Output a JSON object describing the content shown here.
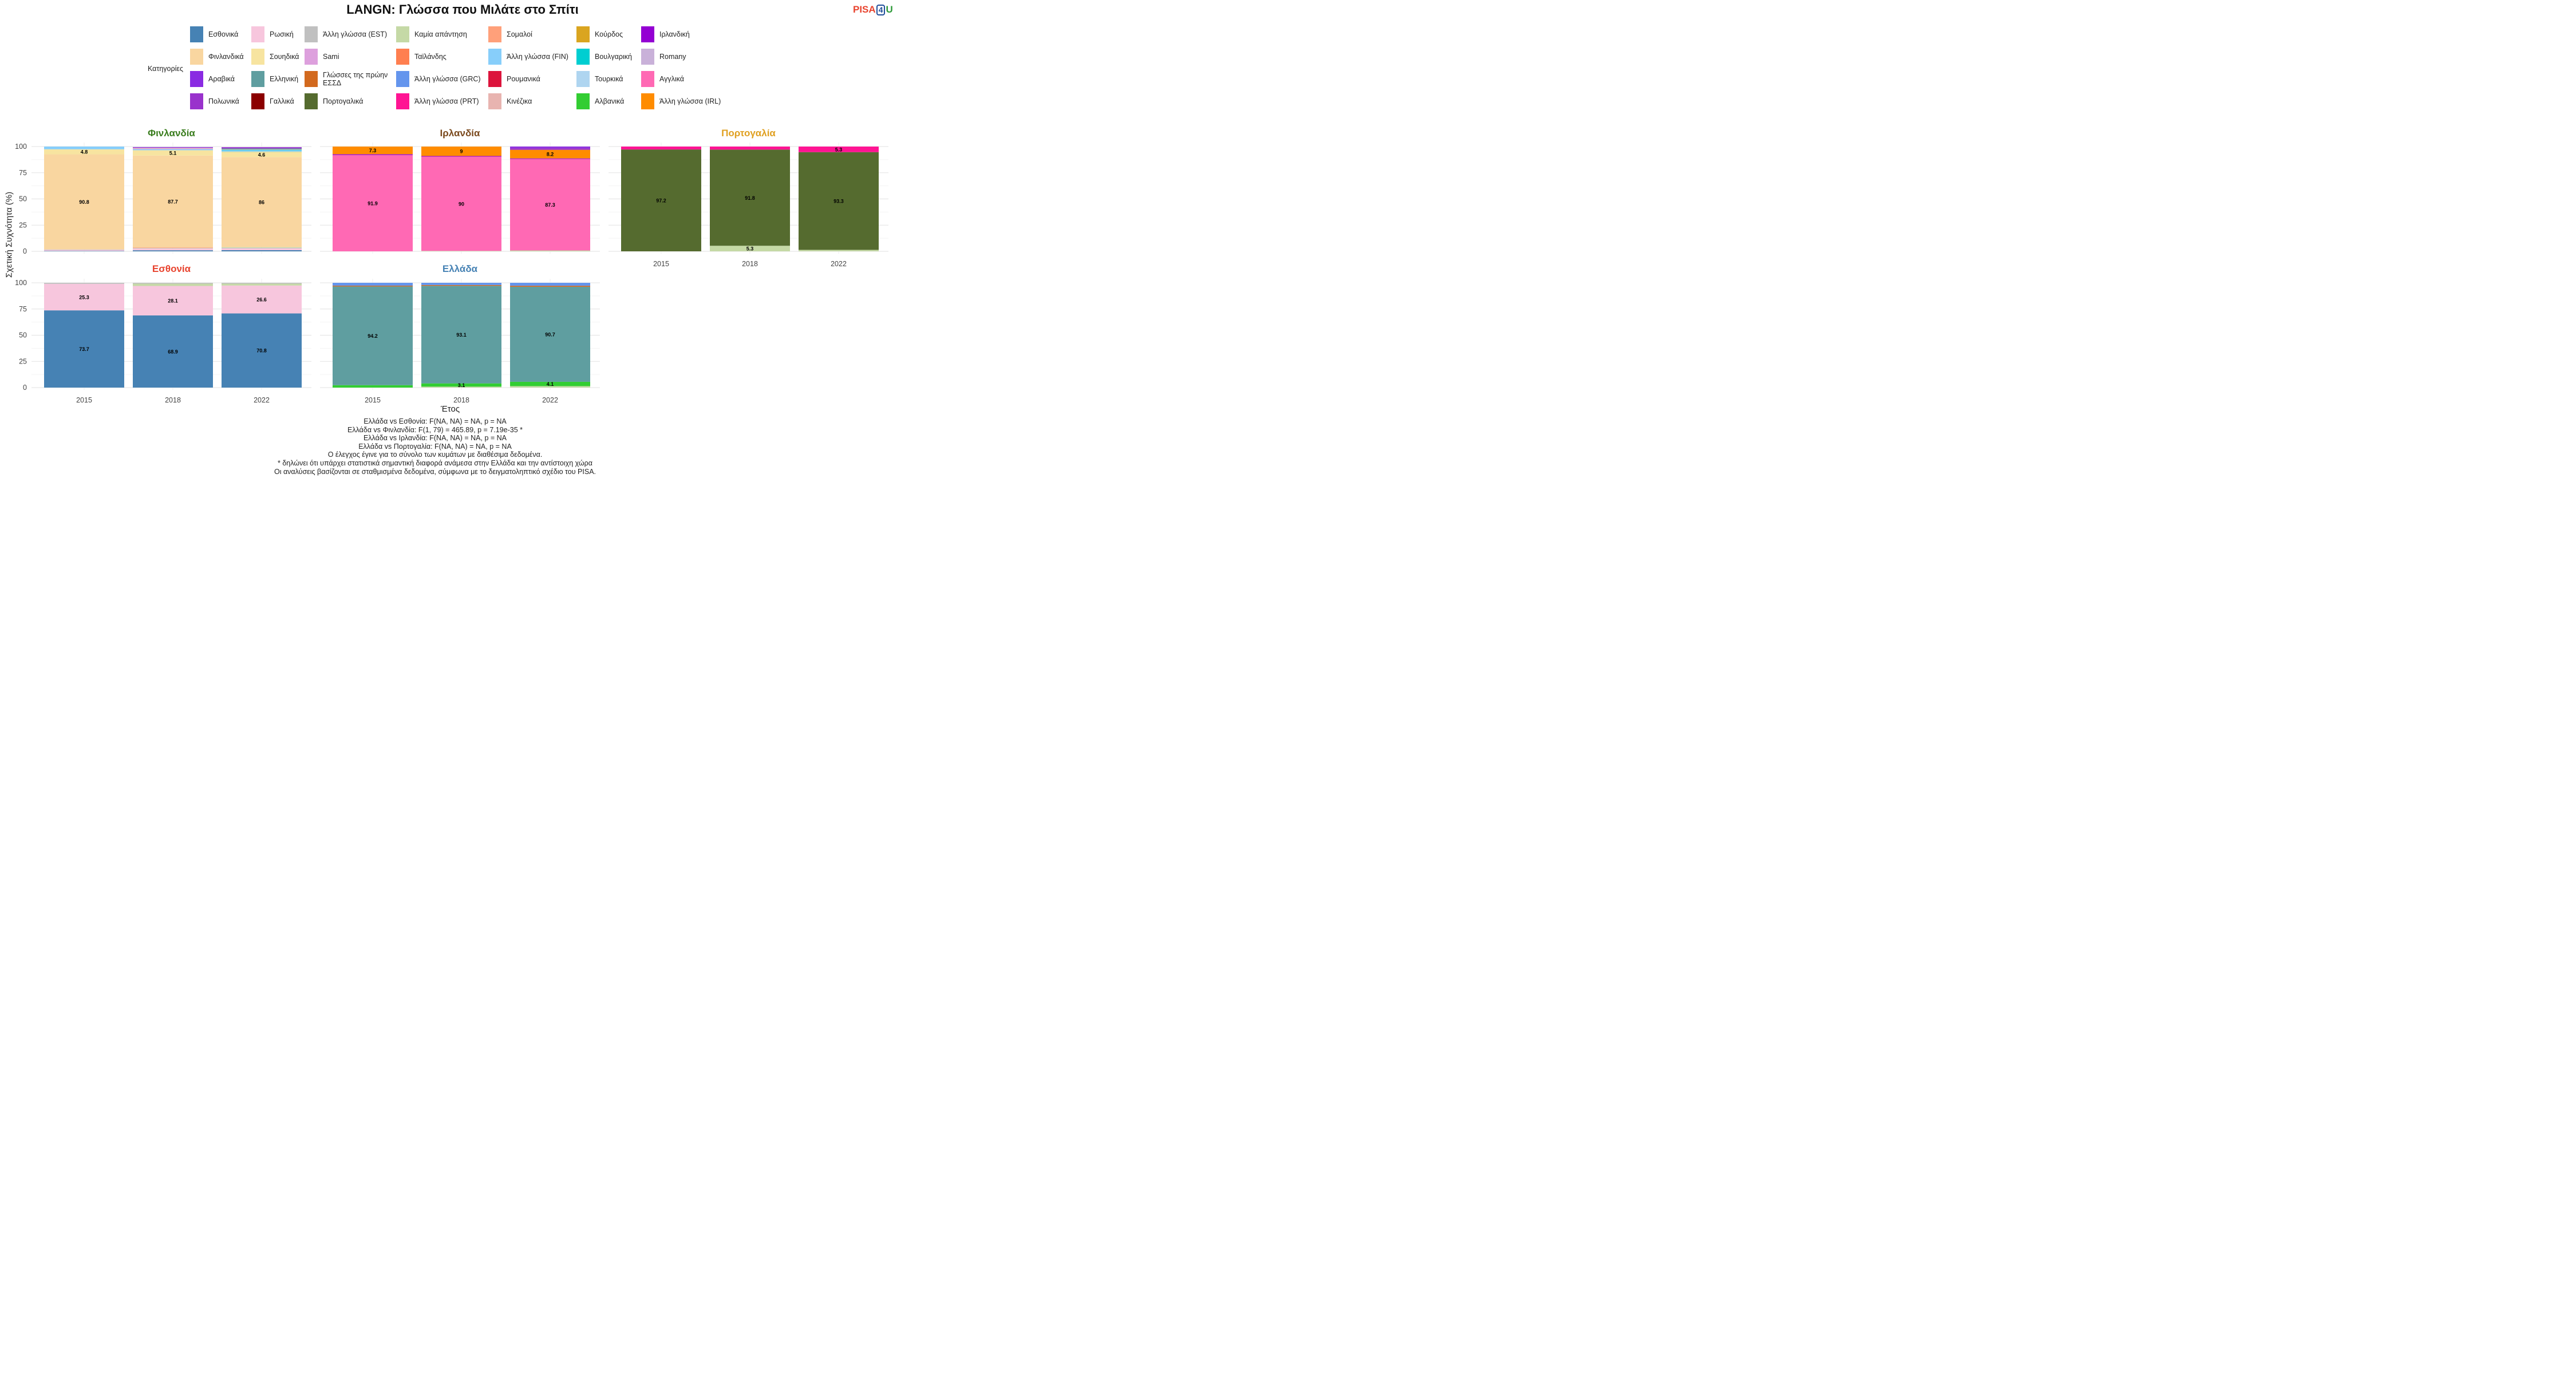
{
  "title": "LANGN: Γλώσσα που Μιλάτε στο Σπίτι",
  "logo": {
    "part1": "PISA",
    "part2": "4",
    "part3": "U",
    "colors": [
      "#e8432e",
      "#1f4e9a",
      "#2e9a3a"
    ]
  },
  "legend_title": "Κατηγορίες",
  "legend_items": [
    {
      "label": "Εσθονικά",
      "color": "#4682b4"
    },
    {
      "label": "Φινλανδικά",
      "color": "#f9d6a0"
    },
    {
      "label": "Αραβικά",
      "color": "#8a2be2"
    },
    {
      "label": "Πολωνικά",
      "color": "#9932cc"
    },
    {
      "label": "Ρωσική",
      "color": "#f7c6dd"
    },
    {
      "label": "Σουηδικά",
      "color": "#f7e4a0"
    },
    {
      "label": "Ελληνική",
      "color": "#5f9ea0"
    },
    {
      "label": "Γαλλικά",
      "color": "#8b0000"
    },
    {
      "label": "Άλλη γλώσσα (EST)",
      "color": "#c0c0c0"
    },
    {
      "label": "Sami",
      "color": "#dda0dd"
    },
    {
      "label": "Γλώσσες της πρώην ΕΣΣΔ",
      "color": "#d2691e"
    },
    {
      "label": "Πορτογαλικά",
      "color": "#556b2f"
    },
    {
      "label": "Καμία απάντηση",
      "color": "#c5d9a6"
    },
    {
      "label": "Ταϊλάνδης",
      "color": "#ff7f50"
    },
    {
      "label": "Άλλη γλώσσα (GRC)",
      "color": "#6495ed"
    },
    {
      "label": "Άλλη γλώσσα (PRT)",
      "color": "#ff1493"
    },
    {
      "label": "Σομαλοί",
      "color": "#ffa07a"
    },
    {
      "label": "Άλλη γλώσσα (FIN)",
      "color": "#87cefa"
    },
    {
      "label": "Ρουμανικά",
      "color": "#dc143c"
    },
    {
      "label": "Κινέζικα",
      "color": "#e8b4b0"
    },
    {
      "label": "Κούρδος",
      "color": "#daa520"
    },
    {
      "label": "Βουλγαρική",
      "color": "#00ced1"
    },
    {
      "label": "Τουρκικά",
      "color": "#afd5f0"
    },
    {
      "label": "Αλβανικά",
      "color": "#32cd32"
    },
    {
      "label": "Ιρλανδική",
      "color": "#9400d3"
    },
    {
      "label": "Romany",
      "color": "#c9b1d9"
    },
    {
      "label": "Αγγλικά",
      "color": "#ff69b4"
    },
    {
      "label": "Άλλη γλώσσα (IRL)",
      "color": "#ff8c00"
    }
  ],
  "axis": {
    "ylabel": "Σχετική Συχνότητα (%)",
    "xlabel": "Έτος"
  },
  "chart_data": {
    "type": "bar",
    "stacked": true,
    "ylim": [
      0,
      100
    ],
    "yticks": [
      0,
      25,
      50,
      75,
      100
    ],
    "categories": [
      "2015",
      "2018",
      "2022"
    ],
    "grid": true,
    "panels": [
      {
        "country": "Φινλανδία",
        "title_color": "#3a7d1e",
        "years": [
          {
            "year": "2015",
            "segments": [
              {
                "cat": "Εσθονικά",
                "value": 0.4
              },
              {
                "cat": "Ρωσική",
                "value": 1.0
              },
              {
                "cat": "Άλλη γλώσσα (EST)",
                "value": 0.4
              },
              {
                "cat": "Φινλανδικά",
                "value": 90.8,
                "label": "90.8"
              },
              {
                "cat": "Σουηδικά",
                "value": 4.8,
                "label": "4.8"
              },
              {
                "cat": "Άλλη γλώσσα (FIN)",
                "value": 2.6
              }
            ]
          },
          {
            "year": "2018",
            "segments": [
              {
                "cat": "Εσθονικά",
                "value": 1.0
              },
              {
                "cat": "Ρωσική",
                "value": 1.6
              },
              {
                "cat": "Άλλη γλώσσα (EST)",
                "value": 0.5
              },
              {
                "cat": "Σομαλοί",
                "value": 0.6
              },
              {
                "cat": "Φινλανδικά",
                "value": 87.7,
                "label": "87.7"
              },
              {
                "cat": "Σουηδικά",
                "value": 5.1,
                "label": "5.1"
              },
              {
                "cat": "Άλλη γλώσσα (FIN)",
                "value": 1.0
              },
              {
                "cat": "Sami",
                "value": 0.6
              },
              {
                "cat": "Κινέζικα",
                "value": 0.7
              },
              {
                "cat": "Αραβικά",
                "value": 0.7
              }
            ]
          },
          {
            "year": "2022",
            "segments": [
              {
                "cat": "Εσθονικά",
                "value": 1.1
              },
              {
                "cat": "Ρωσική",
                "value": 1.7
              },
              {
                "cat": "Άλλη γλώσσα (EST)",
                "value": 0.6
              },
              {
                "cat": "Καμία απάντηση",
                "value": 0.6
              },
              {
                "cat": "Φινλανδικά",
                "value": 86.0,
                "label": "86"
              },
              {
                "cat": "Σουηδικά",
                "value": 4.6,
                "label": "4.6"
              },
              {
                "cat": "Καμία απάντηση",
                "value": 0.7
              },
              {
                "cat": "Άλλη γλώσσα (FIN)",
                "value": 1.1
              },
              {
                "cat": "Βουλγαρική",
                "value": 0.5
              },
              {
                "cat": "Sami",
                "value": 0.6
              },
              {
                "cat": "Αλβανικά",
                "value": 0.5
              },
              {
                "cat": "Αραβικά",
                "value": 0.6
              },
              {
                "cat": "Πολωνικά",
                "value": 0.8
              }
            ]
          }
        ]
      },
      {
        "country": "Ιρλανδία",
        "title_color": "#7b4a1e",
        "years": [
          {
            "year": "2015",
            "segments": [
              {
                "cat": "Αγγλικά",
                "value": 91.9,
                "label": "91.9"
              },
              {
                "cat": "Ιρλανδική",
                "value": 0.8
              },
              {
                "cat": "Άλλη γλώσσα (IRL)",
                "value": 7.3,
                "label": "7.3"
              }
            ]
          },
          {
            "year": "2018",
            "segments": [
              {
                "cat": "Καμία απάντηση",
                "value": 0.4
              },
              {
                "cat": "Αγγλικά",
                "value": 90.0,
                "label": "90"
              },
              {
                "cat": "Ιρλανδική",
                "value": 0.6
              },
              {
                "cat": "Άλλη γλώσσα (IRL)",
                "value": 9.0,
                "label": "9"
              }
            ]
          },
          {
            "year": "2022",
            "segments": [
              {
                "cat": "Καμία απάντηση",
                "value": 0.8
              },
              {
                "cat": "Αγγλικά",
                "value": 87.3,
                "label": "87.3"
              },
              {
                "cat": "Ιρλανδική",
                "value": 0.6
              },
              {
                "cat": "Άλλη γλώσσα (IRL)",
                "value": 8.2,
                "label": "8.2"
              },
              {
                "cat": "Πολωνικά",
                "value": 1.9
              },
              {
                "cat": "Αραβικά",
                "value": 1.2
              }
            ]
          }
        ]
      },
      {
        "country": "Πορτογαλία",
        "title_color": "#e0a020",
        "years": [
          {
            "year": "2015",
            "segments": [
              {
                "cat": "Πορτογαλικά",
                "value": 97.2,
                "label": "97.2"
              },
              {
                "cat": "Άλλη γλώσσα (PRT)",
                "value": 2.8
              }
            ]
          },
          {
            "year": "2018",
            "segments": [
              {
                "cat": "Καμία απάντηση",
                "value": 5.3,
                "label": "5.3"
              },
              {
                "cat": "Πορτογαλικά",
                "value": 91.8,
                "label": "91.8"
              },
              {
                "cat": "Άλλη γλώσσα (PRT)",
                "value": 2.9
              }
            ]
          },
          {
            "year": "2022",
            "segments": [
              {
                "cat": "Καμία απάντηση",
                "value": 1.4
              },
              {
                "cat": "Πορτογαλικά",
                "value": 93.3,
                "label": "93.3"
              },
              {
                "cat": "Άλλη γλώσσα (PRT)",
                "value": 5.3,
                "label": "5.3"
              }
            ]
          }
        ]
      },
      {
        "country": "Εσθονία",
        "title_color": "#e8432e",
        "years": [
          {
            "year": "2015",
            "segments": [
              {
                "cat": "Εσθονικά",
                "value": 73.7,
                "label": "73.7"
              },
              {
                "cat": "Ρωσική",
                "value": 25.3,
                "label": "25.3"
              },
              {
                "cat": "Άλλη γλώσσα (EST)",
                "value": 1.0
              }
            ]
          },
          {
            "year": "2018",
            "segments": [
              {
                "cat": "Εσθονικά",
                "value": 68.9,
                "label": "68.9"
              },
              {
                "cat": "Ρωσική",
                "value": 28.1,
                "label": "28.1"
              },
              {
                "cat": "Καμία απάντηση",
                "value": 2.2
              },
              {
                "cat": "Άλλη γλώσσα (EST)",
                "value": 0.8
              }
            ]
          },
          {
            "year": "2022",
            "segments": [
              {
                "cat": "Εσθονικά",
                "value": 70.8,
                "label": "70.8"
              },
              {
                "cat": "Ρωσική",
                "value": 26.6,
                "label": "26.6"
              },
              {
                "cat": "Καμία απάντηση",
                "value": 1.8
              },
              {
                "cat": "Άλλη γλώσσα (EST)",
                "value": 0.8
              }
            ]
          }
        ]
      },
      {
        "country": "Ελλάδα",
        "title_color": "#4682b4",
        "years": [
          {
            "year": "2015",
            "segments": [
              {
                "cat": "Αλβανικά",
                "value": 2.3
              },
              {
                "cat": "Ελληνική",
                "value": 94.2,
                "label": "94.2"
              },
              {
                "cat": "Γλώσσες της πρώην ΕΣΣΔ",
                "value": 0.8
              },
              {
                "cat": "Άλλη γλώσσα (GRC)",
                "value": 2.7
              }
            ]
          },
          {
            "year": "2018",
            "segments": [
              {
                "cat": "Καμία απάντηση",
                "value": 0.9
              },
              {
                "cat": "Αλβανικά",
                "value": 3.1,
                "label": "3.1"
              },
              {
                "cat": "Ελληνική",
                "value": 93.1,
                "label": "93.1"
              },
              {
                "cat": "Γλώσσες της πρώην ΕΣΣΔ",
                "value": 0.8
              },
              {
                "cat": "Άλλη γλώσσα (GRC)",
                "value": 2.1
              }
            ]
          },
          {
            "year": "2022",
            "segments": [
              {
                "cat": "Καμία απάντηση",
                "value": 1.4
              },
              {
                "cat": "Αλβανικά",
                "value": 4.1,
                "label": "4.1"
              },
              {
                "cat": "Ελληνική",
                "value": 90.7,
                "label": "90.7"
              },
              {
                "cat": "Γλώσσες της πρώην ΕΣΣΔ",
                "value": 1.0
              },
              {
                "cat": "Άλλη γλώσσα (GRC)",
                "value": 2.8
              }
            ]
          }
        ]
      }
    ]
  },
  "footnotes": [
    "Ελλάδα vs Εσθονία: F(NA, NA) = NA, p = NA",
    "Ελλάδα vs Φινλανδία: F(1, 79) = 465.89, p = 7.19e-35 *",
    "Ελλάδα vs Ιρλανδία: F(NA, NA) = NA, p = NA",
    "Ελλάδα vs Πορτογαλία: F(NA, NA) = NA, p = NA",
    "Ο έλεγχος έγινε για το σύνολο των κυμάτων με διαθέσιμα δεδομένα.",
    "* δηλώνει ότι υπάρχει στατιστικά σημαντική διαφορά ανάμεσα στην Ελλάδα και την αντίστοιχη χώρα",
    "Οι αναλύσεις βασίζονται σε σταθμισμένα δεδομένα, σύμφωνα με το δειγματοληπτικό σχέδιο του PISA."
  ]
}
